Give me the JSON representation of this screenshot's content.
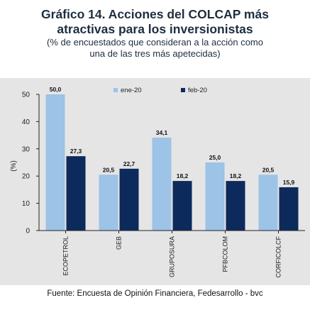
{
  "header": {
    "title_line1": "Gráfico 14. Acciones del COLCAP más",
    "title_line2": "atractivas para los inversionistas",
    "subtitle_line1": "(% de encuestados que consideran a la acción como",
    "subtitle_line2": "una de las tres más apetecidas)"
  },
  "source": "Fuente: Encuesta de Opinión Financiera, Fedesarrollo - bvc",
  "colors": {
    "series1": "#9dc3e6",
    "series2": "#0d2a5c",
    "panel": "#e5e5e5",
    "axis": "#222222"
  },
  "chart_data": {
    "type": "bar",
    "categories": [
      "ECOPETROL",
      "GEB",
      "GRUPOSURA",
      "PFBCOLOM",
      "CORFICOLCF"
    ],
    "series": [
      {
        "name": "ene-20",
        "values": [
          50.0,
          20.5,
          34.1,
          25.0,
          20.5
        ],
        "labels": [
          "50,0",
          "20,5",
          "34,1",
          "25,0",
          "20,5"
        ]
      },
      {
        "name": "feb-20",
        "values": [
          27.3,
          22.7,
          18.2,
          18.2,
          15.9
        ],
        "labels": [
          "27,3",
          "22,7",
          "18,2",
          "18,2",
          "15,9"
        ]
      }
    ],
    "ylabel": "(%)",
    "ylim": [
      0,
      50
    ],
    "yticks": [
      0,
      10,
      20,
      30,
      40,
      50
    ],
    "ytick_labels": [
      "0",
      "10",
      "20",
      "30",
      "40",
      "50"
    ],
    "legend_position": "top-right",
    "grid": false
  }
}
